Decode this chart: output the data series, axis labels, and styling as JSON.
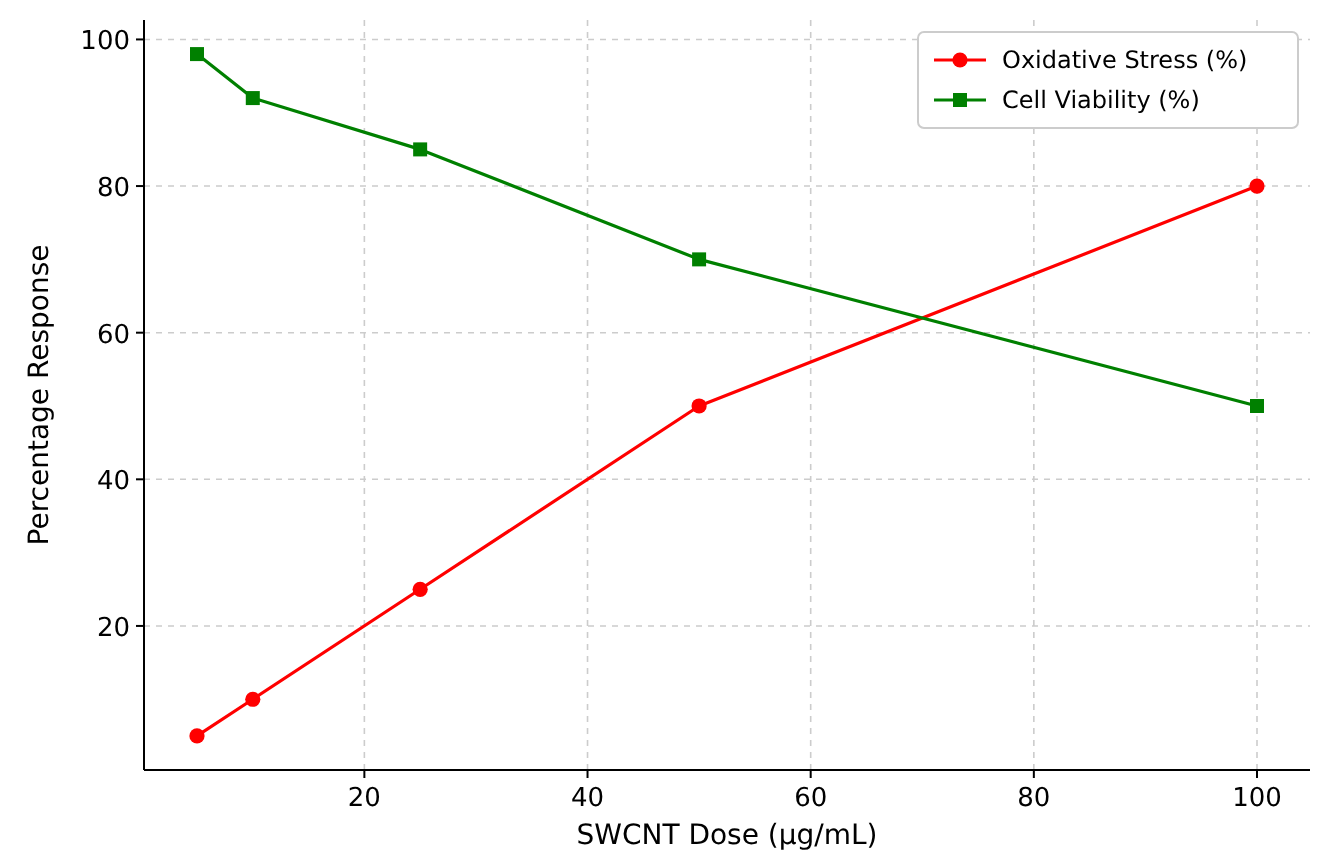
{
  "chart_data": {
    "type": "line",
    "xlabel": "SWCNT Dose (µg/mL)",
    "ylabel": "Percentage Response",
    "x": [
      5,
      10,
      25,
      50,
      100
    ],
    "series": [
      {
        "name": "Oxidative Stress (%)",
        "color": "#ff0000",
        "marker": "circle",
        "values": [
          5,
          10,
          25,
          50,
          80
        ]
      },
      {
        "name": "Cell Viability (%)",
        "color": "#008000",
        "marker": "square",
        "values": [
          98,
          92,
          85,
          70,
          50
        ]
      }
    ],
    "xlim": [
      0.25,
      104.75
    ],
    "xticks": [
      20,
      40,
      60,
      80,
      100
    ],
    "ylim": [
      0.35,
      102.65
    ],
    "yticks": [
      20,
      40,
      60,
      80,
      100
    ],
    "grid": true,
    "legend": "top right",
    "line_style": "solid"
  }
}
